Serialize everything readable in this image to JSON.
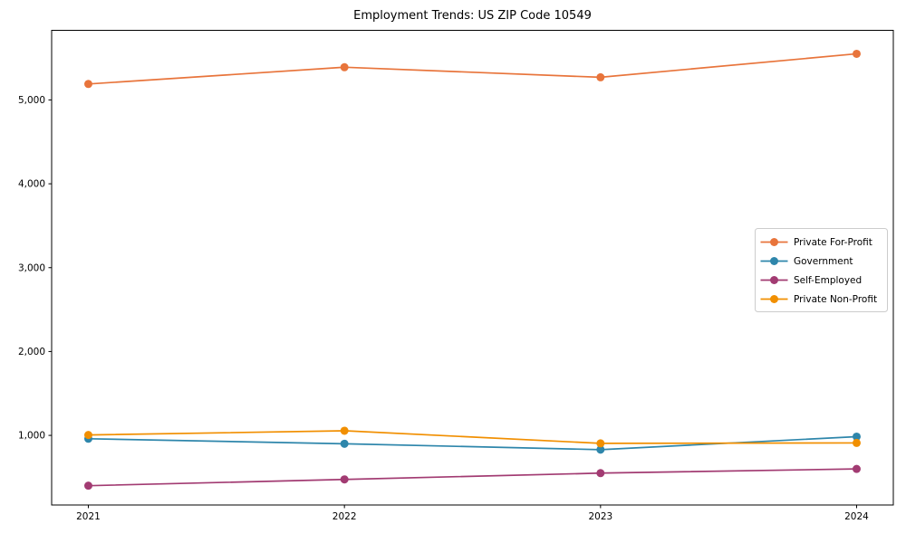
{
  "chart_data": {
    "type": "line",
    "title": "Employment Trends: US ZIP Code 10549",
    "xlabel": "",
    "ylabel": "",
    "x": [
      2021,
      2022,
      2023,
      2024
    ],
    "x_tick_labels": [
      "2021",
      "2022",
      "2023",
      "2024"
    ],
    "yticks": [
      1000,
      2000,
      3000,
      4000,
      5000
    ],
    "ytick_labels": [
      "1,000",
      "2,000",
      "3,000",
      "4,000",
      "5,000"
    ],
    "ylim": [
      170,
      5830
    ],
    "grid": false,
    "marker": "circle",
    "legend_position": "center-right",
    "series": [
      {
        "name": "Private For-Profit",
        "color": "#E8743B",
        "values": [
          5190,
          5390,
          5270,
          5550
        ]
      },
      {
        "name": "Government",
        "color": "#2E86AB",
        "values": [
          960,
          900,
          830,
          985
        ]
      },
      {
        "name": "Self-Employed",
        "color": "#A23B72",
        "values": [
          400,
          475,
          550,
          600
        ]
      },
      {
        "name": "Private Non-Profit",
        "color": "#F18F01",
        "values": [
          1005,
          1055,
          905,
          910
        ]
      }
    ],
    "axis_color": "#000000",
    "legend_border_color": "#cccccc",
    "legend_background": "#ffffff"
  }
}
